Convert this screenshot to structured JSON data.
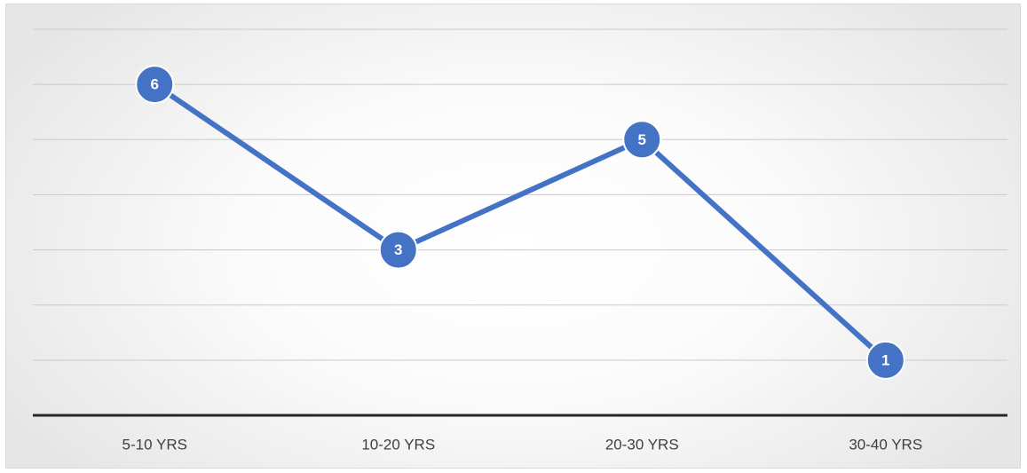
{
  "chart_data": {
    "type": "line",
    "categories": [
      "5-10 YRS",
      "10-20 YRS",
      "20-30 YRS",
      "30-40 YRS"
    ],
    "series": [
      {
        "values": [
          6,
          3,
          5,
          1
        ]
      }
    ],
    "title": "",
    "xlabel": "",
    "ylabel": "",
    "ylim": [
      0,
      7
    ],
    "grid": true,
    "legend": "none",
    "data_labels": true,
    "colors": {
      "series": "#4472c4",
      "axis": "#262626",
      "grid": "#c9c9c9",
      "label_text": "#ffffff"
    }
  }
}
